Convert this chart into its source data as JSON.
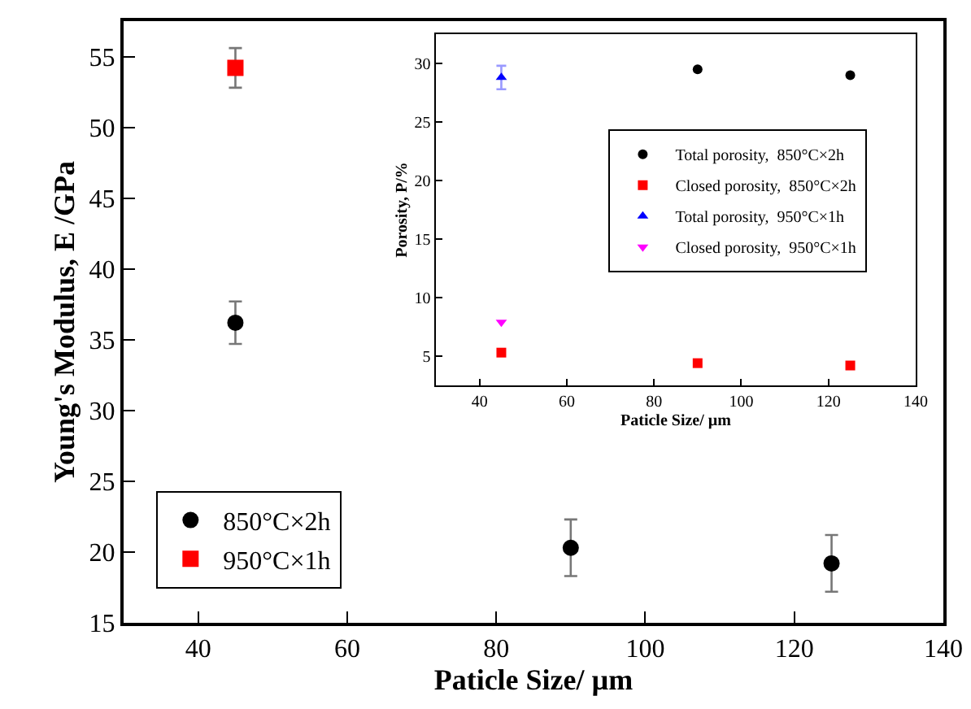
{
  "chart_data": [
    {
      "type": "scatter",
      "xlabel": "Paticle Size/ µm",
      "ylabel": "Young's Modulus, E /GPa",
      "xlim": [
        30,
        140
      ],
      "ylim": [
        15,
        57.5
      ],
      "xticks": [
        40,
        60,
        80,
        100,
        120,
        140
      ],
      "yticks": [
        15,
        20,
        25,
        30,
        35,
        40,
        45,
        50,
        55
      ],
      "grid": false,
      "legend": "bottom left",
      "series": [
        {
          "name": "850°C×2h",
          "color": "#000000",
          "marker": "circle",
          "x": [
            45,
            90,
            125
          ],
          "values": [
            36.2,
            20.3,
            19.2
          ],
          "errors": [
            1.5,
            2,
            2
          ]
        },
        {
          "name": "950°C×1h",
          "color": "#ff0000",
          "marker": "square",
          "x": [
            45
          ],
          "values": [
            54.2
          ],
          "errors": [
            1.4
          ]
        }
      ]
    },
    {
      "type": "scatter",
      "xlabel": "Paticle Size/ µm",
      "ylabel": "Porosity, P/%",
      "xlim": [
        30,
        140
      ],
      "ylim": [
        2.5,
        32.5
      ],
      "xticks": [
        40,
        60,
        80,
        100,
        120,
        140
      ],
      "yticks": [
        5,
        10,
        15,
        20,
        25,
        30
      ],
      "grid": false,
      "legend": "top right",
      "series": [
        {
          "name": "Total porosity,  850°C×2h",
          "color": "#000000",
          "marker": "circle",
          "x": [
            90,
            125
          ],
          "values": [
            29.5,
            29.0
          ]
        },
        {
          "name": "Closed porosity,  850°C×2h",
          "color": "#ff0000",
          "marker": "square",
          "x": [
            45,
            90,
            125
          ],
          "values": [
            5.3,
            4.4,
            4.2
          ]
        },
        {
          "name": "Total porosity,  950°C×1h",
          "color": "#0000ff",
          "marker": "triangle",
          "x": [
            45
          ],
          "values": [
            28.8
          ],
          "errors": [
            1
          ]
        },
        {
          "name": "Closed porosity,  950°C×1h",
          "color": "#ff00ff",
          "marker": "triangle-down",
          "x": [
            45
          ],
          "values": [
            7.9
          ]
        }
      ]
    }
  ]
}
